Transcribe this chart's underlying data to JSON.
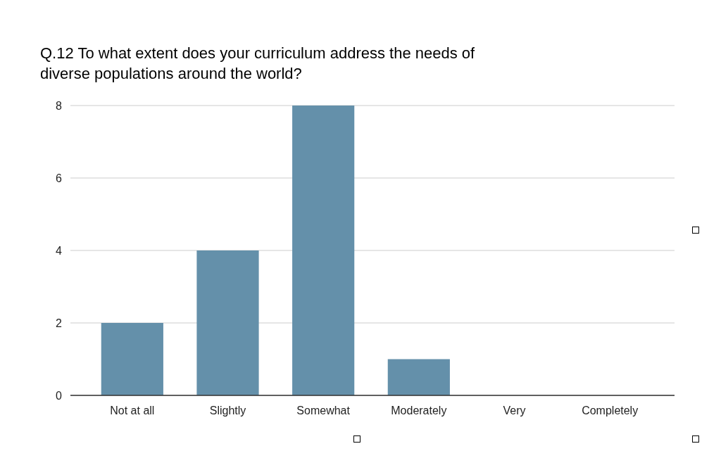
{
  "chart_data": {
    "type": "bar",
    "title": "Q.12 To what extent does your curriculum address the needs of diverse populations around the world?",
    "categories": [
      "Not at all",
      "Slightly",
      "Somewhat",
      "Moderately",
      "Very",
      "Completely"
    ],
    "values": [
      2,
      4,
      8,
      1,
      0,
      0
    ],
    "color": "#6490aa",
    "ylim": [
      0,
      8
    ],
    "yticks": [
      0,
      2,
      4,
      6,
      8
    ],
    "grid": "y"
  }
}
